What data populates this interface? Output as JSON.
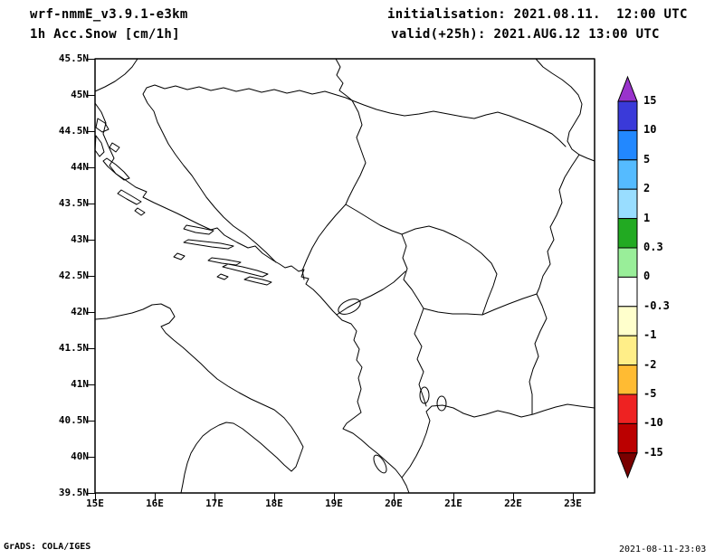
{
  "header": {
    "model": "wrf-nmmE_v3.9.1-e3km",
    "field": "1h Acc.Snow [cm/1h]",
    "init": "initialisation: 2021.08.11.  12:00 UTC",
    "valid": "valid(+25h): 2021.AUG.12 13:00 UTC"
  },
  "footer": {
    "credit": "GrADS: COLA/IGES",
    "timestamp": "2021-08-11-23:03"
  },
  "chart_data": {
    "type": "map",
    "title": "1h Acc.Snow [cm/1h]",
    "model": "wrf-nmmE_v3.9.1-e3km",
    "units": "cm/1h",
    "region": "Adriatic / Balkans",
    "lat_range": [
      "39.5N",
      "45.5N"
    ],
    "lon_range": [
      "15E",
      "23E"
    ],
    "lat_ticks": [
      "45.5N",
      "45N",
      "44.5N",
      "44N",
      "43.5N",
      "43N",
      "42.5N",
      "42N",
      "41.5N",
      "41N",
      "40.5N",
      "40N",
      "39.5N"
    ],
    "lon_ticks": [
      "15E",
      "16E",
      "17E",
      "18E",
      "19E",
      "20E",
      "21E",
      "22E",
      "23E"
    ],
    "field_rendered": "no nonzero accumulated snow shaded anywhere in domain (map blank/white, coastlines and borders only)",
    "colorbar": {
      "labels": [
        "15",
        "10",
        "5",
        "2",
        "1",
        "0.3",
        "0",
        "-0.3",
        "-1",
        "-2",
        "-5",
        "-10",
        "-15"
      ],
      "segment_colors_top_to_bottom": [
        "#9933cc",
        "#3a3ad9",
        "#2288ff",
        "#55bbff",
        "#99ddff",
        "#22aa22",
        "#99ee99",
        "#ffffff",
        "#ffffcc",
        "#ffee88",
        "#ffbb33",
        "#ee2222",
        "#bb0000",
        "#7a0000"
      ],
      "line_color": "#000000"
    }
  }
}
